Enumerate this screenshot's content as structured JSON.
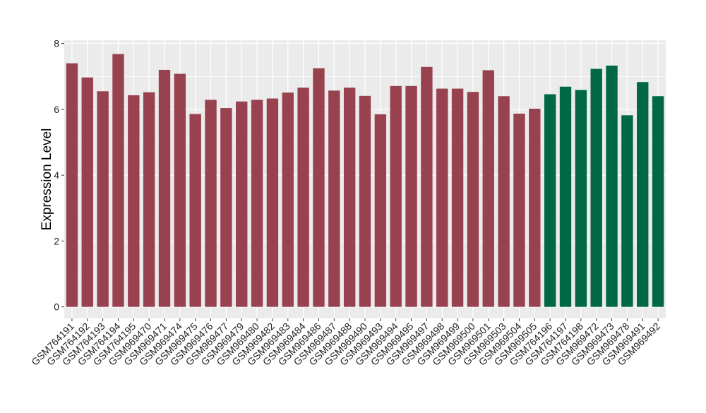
{
  "chart_data": {
    "type": "bar",
    "ylabel": "Expression Level",
    "xlabel": "",
    "title": "",
    "ylim": [
      -0.35,
      8.1
    ],
    "yticks": [
      0,
      2,
      4,
      6,
      8
    ],
    "grid": true,
    "categories": [
      "GSM764191",
      "GSM764192",
      "GSM764193",
      "GSM764194",
      "GSM764195",
      "GSM969470",
      "GSM969471",
      "GSM969474",
      "GSM969475",
      "GSM969476",
      "GSM969477",
      "GSM969479",
      "GSM969480",
      "GSM969482",
      "GSM969483",
      "GSM969484",
      "GSM969486",
      "GSM969487",
      "GSM969488",
      "GSM969490",
      "GSM969493",
      "GSM969494",
      "GSM969495",
      "GSM969497",
      "GSM969498",
      "GSM969499",
      "GSM969500",
      "GSM969501",
      "GSM969503",
      "GSM969504",
      "GSM969505",
      "GSM764196",
      "GSM764197",
      "GSM764198",
      "GSM969472",
      "GSM969473",
      "GSM969478",
      "GSM969491",
      "GSM969492"
    ],
    "values": [
      7.4,
      6.97,
      6.55,
      7.68,
      6.43,
      6.52,
      7.2,
      7.08,
      5.86,
      6.29,
      6.04,
      6.24,
      6.29,
      6.33,
      6.51,
      6.66,
      7.25,
      6.57,
      6.66,
      6.41,
      5.85,
      6.71,
      6.71,
      7.29,
      6.63,
      6.63,
      6.53,
      7.19,
      6.4,
      5.87,
      6.02,
      6.46,
      6.69,
      6.59,
      7.23,
      7.33,
      5.82,
      6.83,
      6.4
    ],
    "groups": [
      "a",
      "a",
      "a",
      "a",
      "a",
      "a",
      "a",
      "a",
      "a",
      "a",
      "a",
      "a",
      "a",
      "a",
      "a",
      "a",
      "a",
      "a",
      "a",
      "a",
      "a",
      "a",
      "a",
      "a",
      "a",
      "a",
      "a",
      "a",
      "a",
      "a",
      "a",
      "b",
      "b",
      "b",
      "b",
      "b",
      "b",
      "b",
      "b"
    ],
    "colors": {
      "a": "#99424f",
      "b": "#006845"
    },
    "panel_background": "#ebebeb",
    "gridline_color": "#ffffff"
  }
}
